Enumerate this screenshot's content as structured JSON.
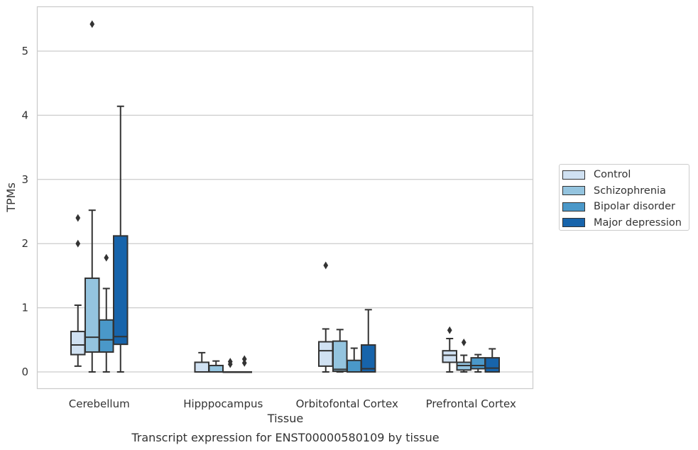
{
  "chart_data": {
    "type": "box",
    "title": "Transcript expression for ENST00000580109 by tissue",
    "xlabel": "Tissue",
    "ylabel": "TPMs",
    "ylim": [
      -0.26,
      5.7
    ],
    "yticks": [
      0,
      1,
      2,
      3,
      4,
      5
    ],
    "grid": "horizontal",
    "legend_position": "right",
    "categories": [
      "Cerebellum",
      "Hipppocampus",
      "Orbitofontal Cortex",
      "Prefrontal Cortex"
    ],
    "series": [
      {
        "name": "Control",
        "color": "#d0e1f2",
        "boxes": [
          {
            "whislo": 0.09,
            "q1": 0.27,
            "med": 0.42,
            "q3": 0.63,
            "whishi": 1.04,
            "fliers": [
              2.4,
              2.0
            ]
          },
          {
            "whislo": 0.0,
            "q1": 0.0,
            "med": 0.0,
            "q3": 0.15,
            "whishi": 0.3,
            "fliers": []
          },
          {
            "whislo": 0.0,
            "q1": 0.09,
            "med": 0.33,
            "q3": 0.47,
            "whishi": 0.67,
            "fliers": [
              1.66
            ]
          },
          {
            "whislo": 0.0,
            "q1": 0.15,
            "med": 0.26,
            "q3": 0.33,
            "whishi": 0.52,
            "fliers": [
              0.65
            ]
          }
        ]
      },
      {
        "name": "Schizophrenia",
        "color": "#94c4df",
        "boxes": [
          {
            "whislo": 0.0,
            "q1": 0.31,
            "med": 0.54,
            "q3": 1.46,
            "whishi": 2.52,
            "fliers": [
              5.42
            ]
          },
          {
            "whislo": 0.0,
            "q1": 0.0,
            "med": 0.0,
            "q3": 0.1,
            "whishi": 0.17,
            "fliers": []
          },
          {
            "whislo": 0.0,
            "q1": 0.01,
            "med": 0.04,
            "q3": 0.48,
            "whishi": 0.66,
            "fliers": []
          },
          {
            "whislo": 0.0,
            "q1": 0.03,
            "med": 0.1,
            "q3": 0.15,
            "whishi": 0.26,
            "fliers": [
              0.46
            ]
          }
        ]
      },
      {
        "name": "Bipolar disorder",
        "color": "#4a98c9",
        "boxes": [
          {
            "whislo": 0.0,
            "q1": 0.31,
            "med": 0.5,
            "q3": 0.81,
            "whishi": 1.3,
            "fliers": [
              1.78
            ]
          },
          {
            "whislo": 0.0,
            "q1": 0.0,
            "med": 0.0,
            "q3": 0.0,
            "whishi": 0.0,
            "fliers": [
              0.16,
              0.12
            ]
          },
          {
            "whislo": 0.0,
            "q1": 0.0,
            "med": 0.0,
            "q3": 0.18,
            "whishi": 0.37,
            "fliers": []
          },
          {
            "whislo": 0.0,
            "q1": 0.05,
            "med": 0.1,
            "q3": 0.22,
            "whishi": 0.27,
            "fliers": []
          }
        ]
      },
      {
        "name": "Major depression",
        "color": "#1764ab",
        "boxes": [
          {
            "whislo": 0.0,
            "q1": 0.43,
            "med": 0.55,
            "q3": 2.12,
            "whishi": 4.14,
            "fliers": []
          },
          {
            "whislo": 0.0,
            "q1": 0.0,
            "med": 0.0,
            "q3": 0.0,
            "whishi": 0.0,
            "fliers": [
              0.2,
              0.14
            ]
          },
          {
            "whislo": 0.0,
            "q1": 0.0,
            "med": 0.05,
            "q3": 0.42,
            "whishi": 0.97,
            "fliers": []
          },
          {
            "whislo": 0.0,
            "q1": 0.0,
            "med": 0.06,
            "q3": 0.22,
            "whishi": 0.36,
            "fliers": []
          }
        ]
      }
    ]
  }
}
